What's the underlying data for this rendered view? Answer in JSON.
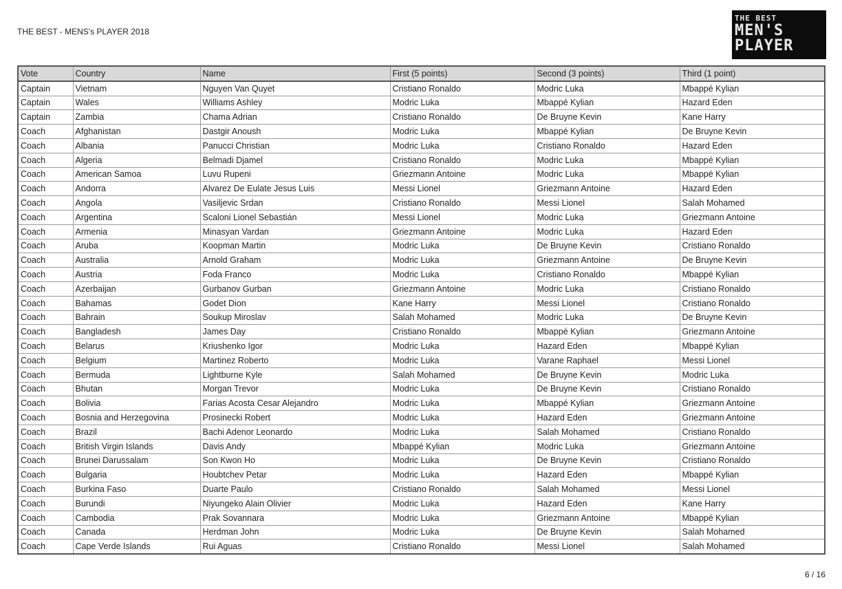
{
  "header": {
    "title": "THE BEST - MENS's PLAYER 2018",
    "logo_text": [
      "THE BEST",
      "MEN'S",
      "PLAYER"
    ]
  },
  "table": {
    "columns": [
      "Vote",
      "Country",
      "Name",
      "First (5 points)",
      "Second (3 points)",
      "Third (1 point)"
    ],
    "rows": [
      [
        "Captain",
        "Vietnam",
        "Nguyen Van Quyet",
        "Cristiano Ronaldo",
        "Modric Luka",
        "Mbappé Kylian"
      ],
      [
        "Captain",
        "Wales",
        "Williams Ashley",
        "Modric Luka",
        "Mbappé Kylian",
        "Hazard Eden"
      ],
      [
        "Captain",
        "Zambia",
        "Chama Adrian",
        "Cristiano Ronaldo",
        "De Bruyne Kevin",
        "Kane Harry"
      ],
      [
        "Coach",
        "Afghanistan",
        "Dastgir Anoush",
        "Modric Luka",
        "Mbappé Kylian",
        "De Bruyne Kevin"
      ],
      [
        "Coach",
        "Albania",
        "Panucci Christian",
        "Modric Luka",
        "Cristiano Ronaldo",
        "Hazard Eden"
      ],
      [
        "Coach",
        "Algeria",
        "Belmadi Djamel",
        "Cristiano Ronaldo",
        "Modric Luka",
        "Mbappé Kylian"
      ],
      [
        "Coach",
        "American Samoa",
        "Luvu Rupeni",
        "Griezmann Antoine",
        "Modric Luka",
        "Mbappé Kylian"
      ],
      [
        "Coach",
        "Andorra",
        "Alvarez De Eulate Jesus Luis",
        "Messi Lionel",
        "Griezmann Antoine",
        "Hazard Eden"
      ],
      [
        "Coach",
        "Angola",
        "Vasiljevic Srdan",
        "Cristiano Ronaldo",
        "Messi Lionel",
        "Salah Mohamed"
      ],
      [
        "Coach",
        "Argentina",
        "Scaloni Lionel Sebastián",
        "Messi Lionel",
        "Modric Luka",
        "Griezmann Antoine"
      ],
      [
        "Coach",
        "Armenia",
        "Minasyan Vardan",
        "Griezmann Antoine",
        "Modric Luka",
        "Hazard Eden"
      ],
      [
        "Coach",
        "Aruba",
        "Koopman Martin",
        "Modric Luka",
        "De Bruyne Kevin",
        "Cristiano Ronaldo"
      ],
      [
        "Coach",
        "Australia",
        "Arnold Graham",
        "Modric Luka",
        "Griezmann Antoine",
        "De Bruyne Kevin"
      ],
      [
        "Coach",
        "Austria",
        "Foda Franco",
        "Modric Luka",
        "Cristiano Ronaldo",
        "Mbappé Kylian"
      ],
      [
        "Coach",
        "Azerbaijan",
        "Gurbanov Gurban",
        "Griezmann Antoine",
        "Modric Luka",
        "Cristiano Ronaldo"
      ],
      [
        "Coach",
        "Bahamas",
        "Godet Dion",
        "Kane Harry",
        "Messi Lionel",
        "Cristiano Ronaldo"
      ],
      [
        "Coach",
        "Bahrain",
        "Soukup Miroslav",
        "Salah Mohamed",
        "Modric Luka",
        "De Bruyne Kevin"
      ],
      [
        "Coach",
        "Bangladesh",
        "James Day",
        "Cristiano Ronaldo",
        "Mbappé Kylian",
        "Griezmann Antoine"
      ],
      [
        "Coach",
        "Belarus",
        "Kriushenko Igor",
        "Modric Luka",
        "Hazard Eden",
        "Mbappé Kylian"
      ],
      [
        "Coach",
        "Belgium",
        "Martinez Roberto",
        "Modric Luka",
        "Varane Raphael",
        "Messi Lionel"
      ],
      [
        "Coach",
        "Bermuda",
        "Lightburne Kyle",
        "Salah Mohamed",
        "De Bruyne Kevin",
        "Modric Luka"
      ],
      [
        "Coach",
        "Bhutan",
        "Morgan Trevor",
        "Modric Luka",
        "De Bruyne Kevin",
        "Cristiano Ronaldo"
      ],
      [
        "Coach",
        "Bolivia",
        "Farias Acosta Cesar Alejandro",
        "Modric Luka",
        "Mbappé Kylian",
        "Griezmann Antoine"
      ],
      [
        "Coach",
        "Bosnia and Herzegovina",
        "Prosinecki Robert",
        "Modric Luka",
        "Hazard Eden",
        "Griezmann Antoine"
      ],
      [
        "Coach",
        "Brazil",
        "Bachi Adenor Leonardo",
        "Modric Luka",
        "Salah Mohamed",
        "Cristiano Ronaldo"
      ],
      [
        "Coach",
        "British Virgin Islands",
        "Davis Andy",
        "Mbappé Kylian",
        "Modric Luka",
        "Griezmann Antoine"
      ],
      [
        "Coach",
        "Brunei Darussalam",
        "Son Kwon Ho",
        "Modric Luka",
        "De Bruyne Kevin",
        "Cristiano Ronaldo"
      ],
      [
        "Coach",
        "Bulgaria",
        "Houbtchev Petar",
        "Modric Luka",
        "Hazard Eden",
        "Mbappé Kylian"
      ],
      [
        "Coach",
        "Burkina Faso",
        "Duarte Paulo",
        "Cristiano Ronaldo",
        "Salah Mohamed",
        "Messi Lionel"
      ],
      [
        "Coach",
        "Burundi",
        "Niyungeko Alain Olivier",
        "Modric Luka",
        "Hazard Eden",
        "Kane Harry"
      ],
      [
        "Coach",
        "Cambodia",
        "Prak Sovannara",
        "Modric Luka",
        "Griezmann Antoine",
        "Mbappé Kylian"
      ],
      [
        "Coach",
        "Canada",
        "Herdman John",
        "Modric Luka",
        "De Bruyne Kevin",
        "Salah Mohamed"
      ],
      [
        "Coach",
        "Cape Verde Islands",
        "Rui Aguas",
        "Cristiano Ronaldo",
        "Messi Lionel",
        "Salah Mohamed"
      ]
    ]
  },
  "footer": {
    "page": "6 / 16"
  }
}
